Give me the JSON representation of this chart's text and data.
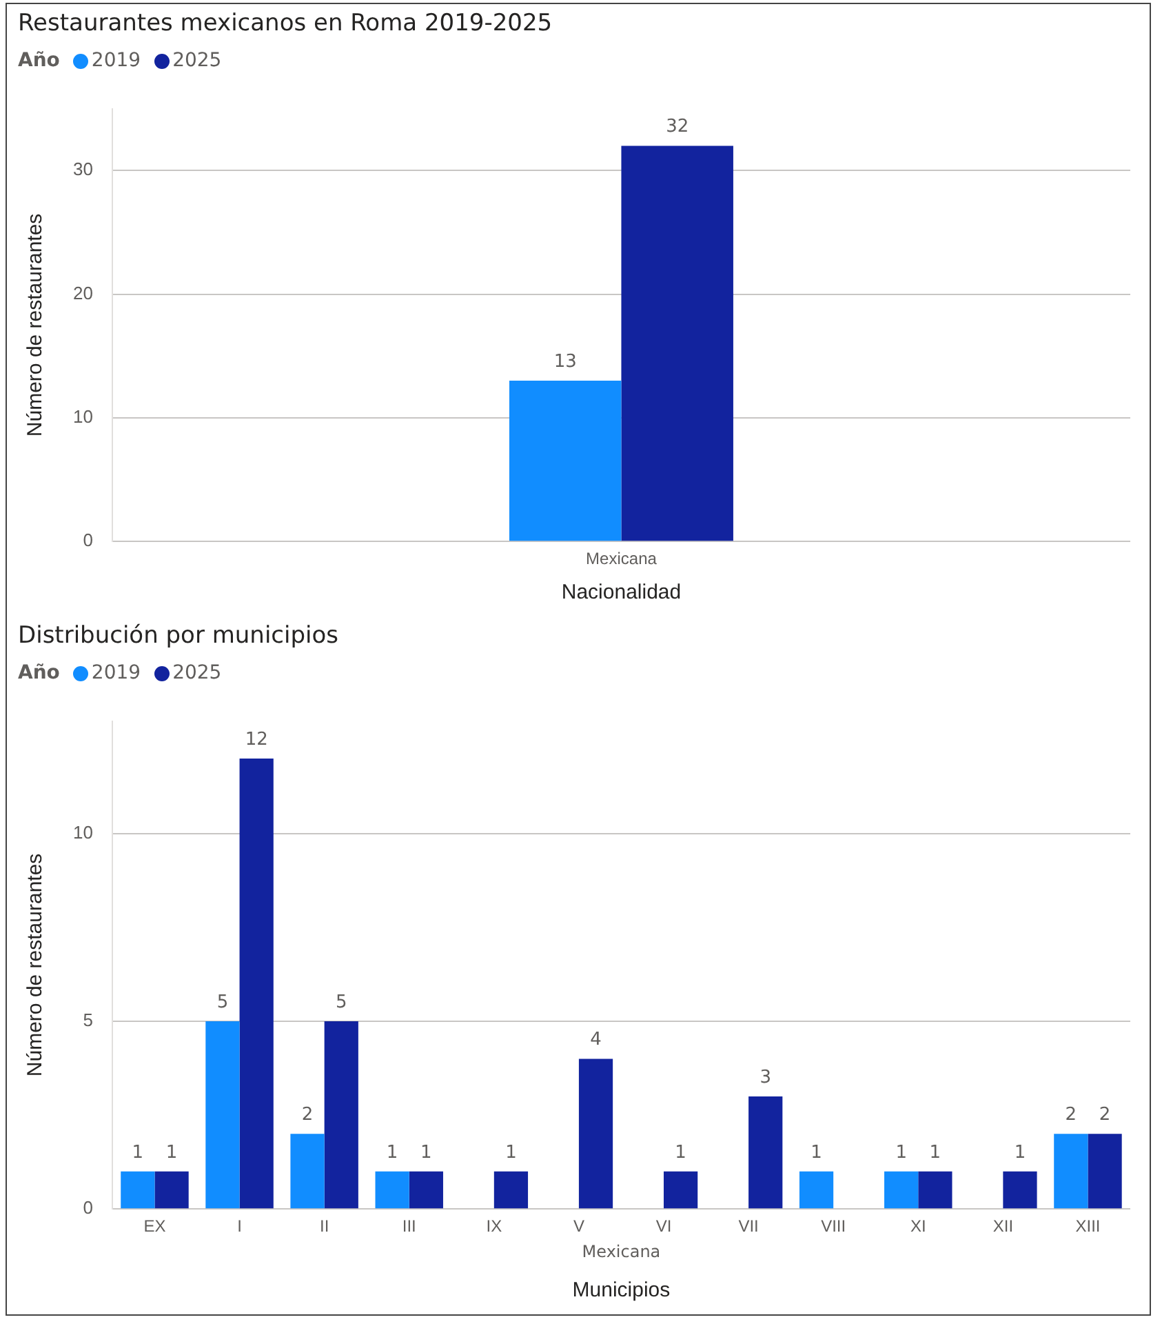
{
  "chart_data": [
    {
      "type": "bar",
      "title": "Restaurantes mexicanos en Roma 2019-2025",
      "legend_title": "Año",
      "xlabel": "Nacionalidad",
      "ylabel": "Número de restaurantes",
      "categories": [
        "Mexicana"
      ],
      "ylim": [
        0,
        35
      ],
      "series": [
        {
          "name": "2019",
          "color": "#118dff",
          "values": [
            13
          ]
        },
        {
          "name": "2025",
          "color": "#12239e",
          "values": [
            32
          ]
        }
      ],
      "yticks": [
        0,
        10,
        20,
        30
      ],
      "grid": "y",
      "legend": "top left",
      "data_labels": true
    },
    {
      "type": "bar",
      "title": "Distribución por municipios",
      "legend_title": "Año",
      "xlabel": "Municipios",
      "ylabel": "Número de restaurantes",
      "ylim": [
        0,
        13
      ],
      "categories": [
        "EX",
        "I",
        "II",
        "III",
        "IX",
        "V",
        "VI",
        "VII",
        "VIII",
        "XI",
        "XII",
        "XIII"
      ],
      "series": [
        {
          "name": "2019",
          "color": "#118dff",
          "values": [
            1,
            5,
            2,
            1,
            null,
            null,
            null,
            null,
            1,
            1,
            null,
            2
          ]
        },
        {
          "name": "2025",
          "color": "#12239e",
          "values": [
            1,
            12,
            5,
            1,
            1,
            4,
            1,
            3,
            null,
            1,
            1,
            2
          ]
        }
      ],
      "yticks": [
        0,
        5,
        10
      ],
      "grid": "y",
      "legend": "top left",
      "data_labels": true,
      "annotations": [
        "Mexicana"
      ]
    }
  ]
}
